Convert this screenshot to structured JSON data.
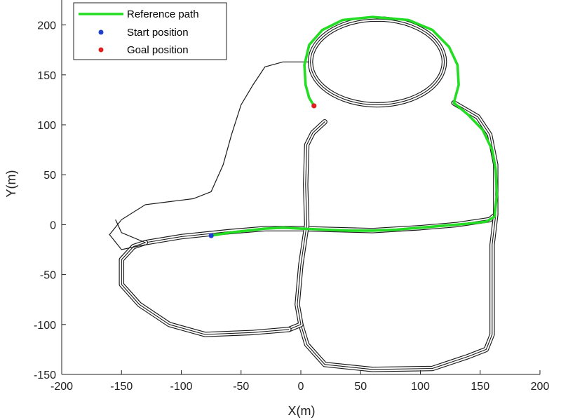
{
  "chart_data": {
    "type": "line",
    "title": "",
    "xlabel": "X(m)",
    "ylabel": "Y(m)",
    "xlim": [
      -200,
      200
    ],
    "ylim": [
      -150,
      225
    ],
    "xticks": [
      -200,
      -150,
      -100,
      -50,
      0,
      50,
      100,
      150,
      200
    ],
    "yticks": [
      -150,
      -100,
      -50,
      0,
      50,
      100,
      150,
      200
    ],
    "grid": false,
    "legend_position": "top-left",
    "legend": [
      {
        "label": "Reference path",
        "kind": "line",
        "color": "#22dd22"
      },
      {
        "label": "Start position",
        "kind": "marker",
        "color": "#1f3fcf"
      },
      {
        "label": "Goal position",
        "kind": "marker",
        "color": "#e02020"
      }
    ],
    "series": [
      {
        "name": "Reference path",
        "color": "#22dd22",
        "points": [
          [
            -75,
            -11
          ],
          [
            -60,
            -8
          ],
          [
            -45,
            -6
          ],
          [
            -30,
            -4
          ],
          [
            -15,
            -3
          ],
          [
            0,
            -4
          ],
          [
            20,
            -5
          ],
          [
            40,
            -6
          ],
          [
            60,
            -6
          ],
          [
            80,
            -5
          ],
          [
            100,
            -3
          ],
          [
            120,
            -1
          ],
          [
            140,
            1
          ],
          [
            155,
            3
          ],
          [
            162,
            8
          ],
          [
            164,
            30
          ],
          [
            163,
            55
          ],
          [
            160,
            75
          ],
          [
            152,
            95
          ],
          [
            140,
            110
          ],
          [
            128,
            122
          ],
          [
            132,
            140
          ],
          [
            131,
            160
          ],
          [
            124,
            178
          ],
          [
            110,
            195
          ],
          [
            90,
            205
          ],
          [
            60,
            208
          ],
          [
            35,
            205
          ],
          [
            18,
            195
          ],
          [
            7,
            180
          ],
          [
            3,
            160
          ],
          [
            4,
            140
          ],
          [
            7,
            127
          ],
          [
            11,
            119
          ]
        ]
      }
    ],
    "start_position": [
      -75,
      -11
    ],
    "goal_position": [
      11,
      119
    ]
  }
}
